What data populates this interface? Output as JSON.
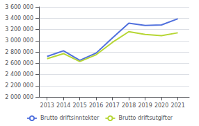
{
  "chart_data": {
    "type": "line",
    "x": [
      2013,
      2014,
      2015,
      2016,
      2017,
      2018,
      2019,
      2020,
      2021
    ],
    "series": [
      {
        "name": "Brutto driftsinntekter",
        "values": [
          2720000,
          2820000,
          2650000,
          2780000,
          3050000,
          3310000,
          3270000,
          3280000,
          3390000
        ]
      },
      {
        "name": "Brutto driftsutgifter",
        "values": [
          2680000,
          2770000,
          2630000,
          2750000,
          2970000,
          3160000,
          3110000,
          3090000,
          3140000
        ]
      }
    ],
    "xlim": [
      2012.5,
      2021.7
    ],
    "xticks": [
      2013,
      2014,
      2015,
      2016,
      2017,
      2018,
      2019,
      2020,
      2021
    ],
    "ylim": [
      2000000,
      3600000
    ],
    "yticks": [
      {
        "value": 2000000,
        "label": "2 000 000"
      },
      {
        "value": 2200000,
        "label": "2 200 000"
      },
      {
        "value": 2400000,
        "label": "2 400 000"
      },
      {
        "value": 2600000,
        "label": "2 600 000"
      },
      {
        "value": 2800000,
        "label": "2 800 000"
      },
      {
        "value": 3000000,
        "label": "3 000 000"
      },
      {
        "value": 3200000,
        "label": "3 200 000"
      },
      {
        "value": 3400000,
        "label": "3 400 000"
      },
      {
        "value": 3600000,
        "label": "3 600 000"
      }
    ],
    "grid": true,
    "legend": "bottom"
  }
}
